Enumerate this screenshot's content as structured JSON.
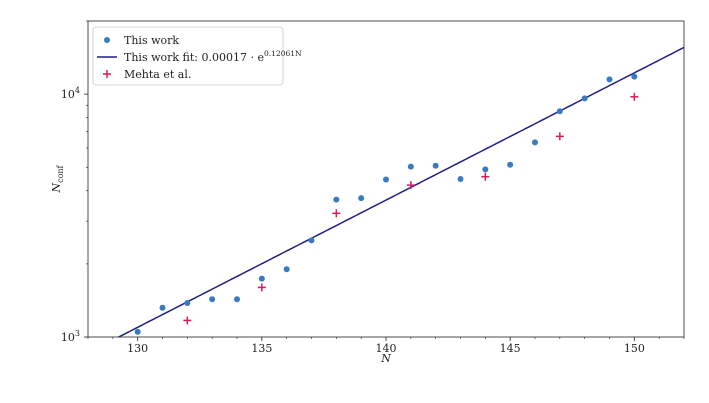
{
  "chart_data": {
    "type": "scatter",
    "title": "",
    "xlabel": "N",
    "ylabel_main": "N",
    "ylabel_sub": "conf",
    "xlim": [
      128,
      152
    ],
    "ylim": [
      1000,
      20000
    ],
    "yscale": "log",
    "grid": false,
    "legend_position": "top-left",
    "x_ticks": [
      130,
      135,
      140,
      145,
      150
    ],
    "x_tick_labels": [
      "130",
      "135",
      "140",
      "145",
      "150"
    ],
    "y_ticks": [
      1000,
      10000
    ],
    "y_tick_labels": [
      {
        "base": "10",
        "exp": "3"
      },
      {
        "base": "10",
        "exp": "4"
      }
    ],
    "series": [
      {
        "name": "This work",
        "kind": "scatter",
        "marker": "circle",
        "color": "#3a7abf",
        "x": [
          130,
          131,
          132,
          133,
          134,
          135,
          136,
          137,
          138,
          139,
          140,
          141,
          142,
          143,
          144,
          145,
          146,
          147,
          148,
          149,
          150
        ],
        "y": [
          1050,
          1320,
          1380,
          1430,
          1430,
          1740,
          1900,
          2500,
          3680,
          3730,
          4450,
          5030,
          5070,
          4470,
          4900,
          5120,
          6330,
          8500,
          9600,
          11500,
          11800
        ]
      },
      {
        "name": "This work fit: 0.00017 · e^{0.12061N}",
        "name_prefix": "This work fit: 0.00017 · e",
        "name_exp": "0.12061N",
        "kind": "line",
        "color": "#1f1f8a",
        "a": 0.00017,
        "b": 0.12061
      },
      {
        "name": "Mehta et al.",
        "kind": "scatter",
        "marker": "plus",
        "color": "#d81b60",
        "x": [
          132,
          135,
          138,
          141,
          144,
          147,
          150
        ],
        "y": [
          1170,
          1600,
          3230,
          4220,
          4570,
          6700,
          9750
        ]
      }
    ]
  }
}
